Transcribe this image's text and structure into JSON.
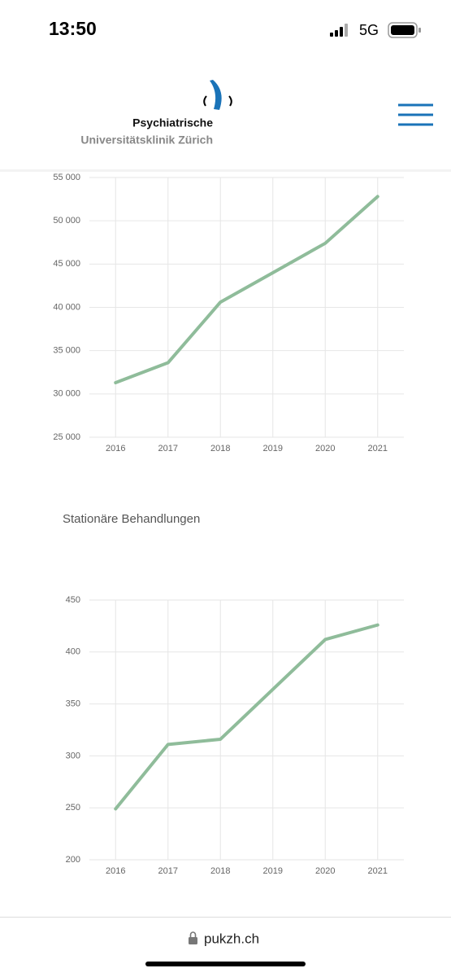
{
  "status_bar": {
    "time": "13:50",
    "network": "5G"
  },
  "header": {
    "title": "Psychiatrische",
    "subtitle": "Universitätsklinik Zürich"
  },
  "chart_data": [
    {
      "type": "line",
      "categories": [
        "2016",
        "2017",
        "2018",
        "2019",
        "2020",
        "2021"
      ],
      "values": [
        31300,
        33600,
        40600,
        44000,
        47400,
        52800
      ],
      "color": "#8fbc9a",
      "ylim": [
        25000,
        55000
      ],
      "yticks": [
        {
          "value": 25000,
          "label": "25 000"
        },
        {
          "value": 30000,
          "label": "30 000"
        },
        {
          "value": 35000,
          "label": "35 000"
        },
        {
          "value": 40000,
          "label": "40 000"
        },
        {
          "value": 45000,
          "label": "45 000"
        },
        {
          "value": 50000,
          "label": "50 000"
        },
        {
          "value": 55000,
          "label": "55 000"
        }
      ],
      "grid": true
    },
    {
      "type": "line",
      "title": "Stationäre Behandlungen",
      "categories": [
        "2016",
        "2017",
        "2018",
        "2019",
        "2020",
        "2021"
      ],
      "values": [
        249,
        311,
        316,
        364,
        412,
        426
      ],
      "color": "#8fbc9a",
      "ylim": [
        200,
        450
      ],
      "yticks": [
        200,
        250,
        300,
        350,
        400,
        450
      ],
      "grid": true
    }
  ],
  "url_bar": {
    "url": "pukzh.ch"
  }
}
